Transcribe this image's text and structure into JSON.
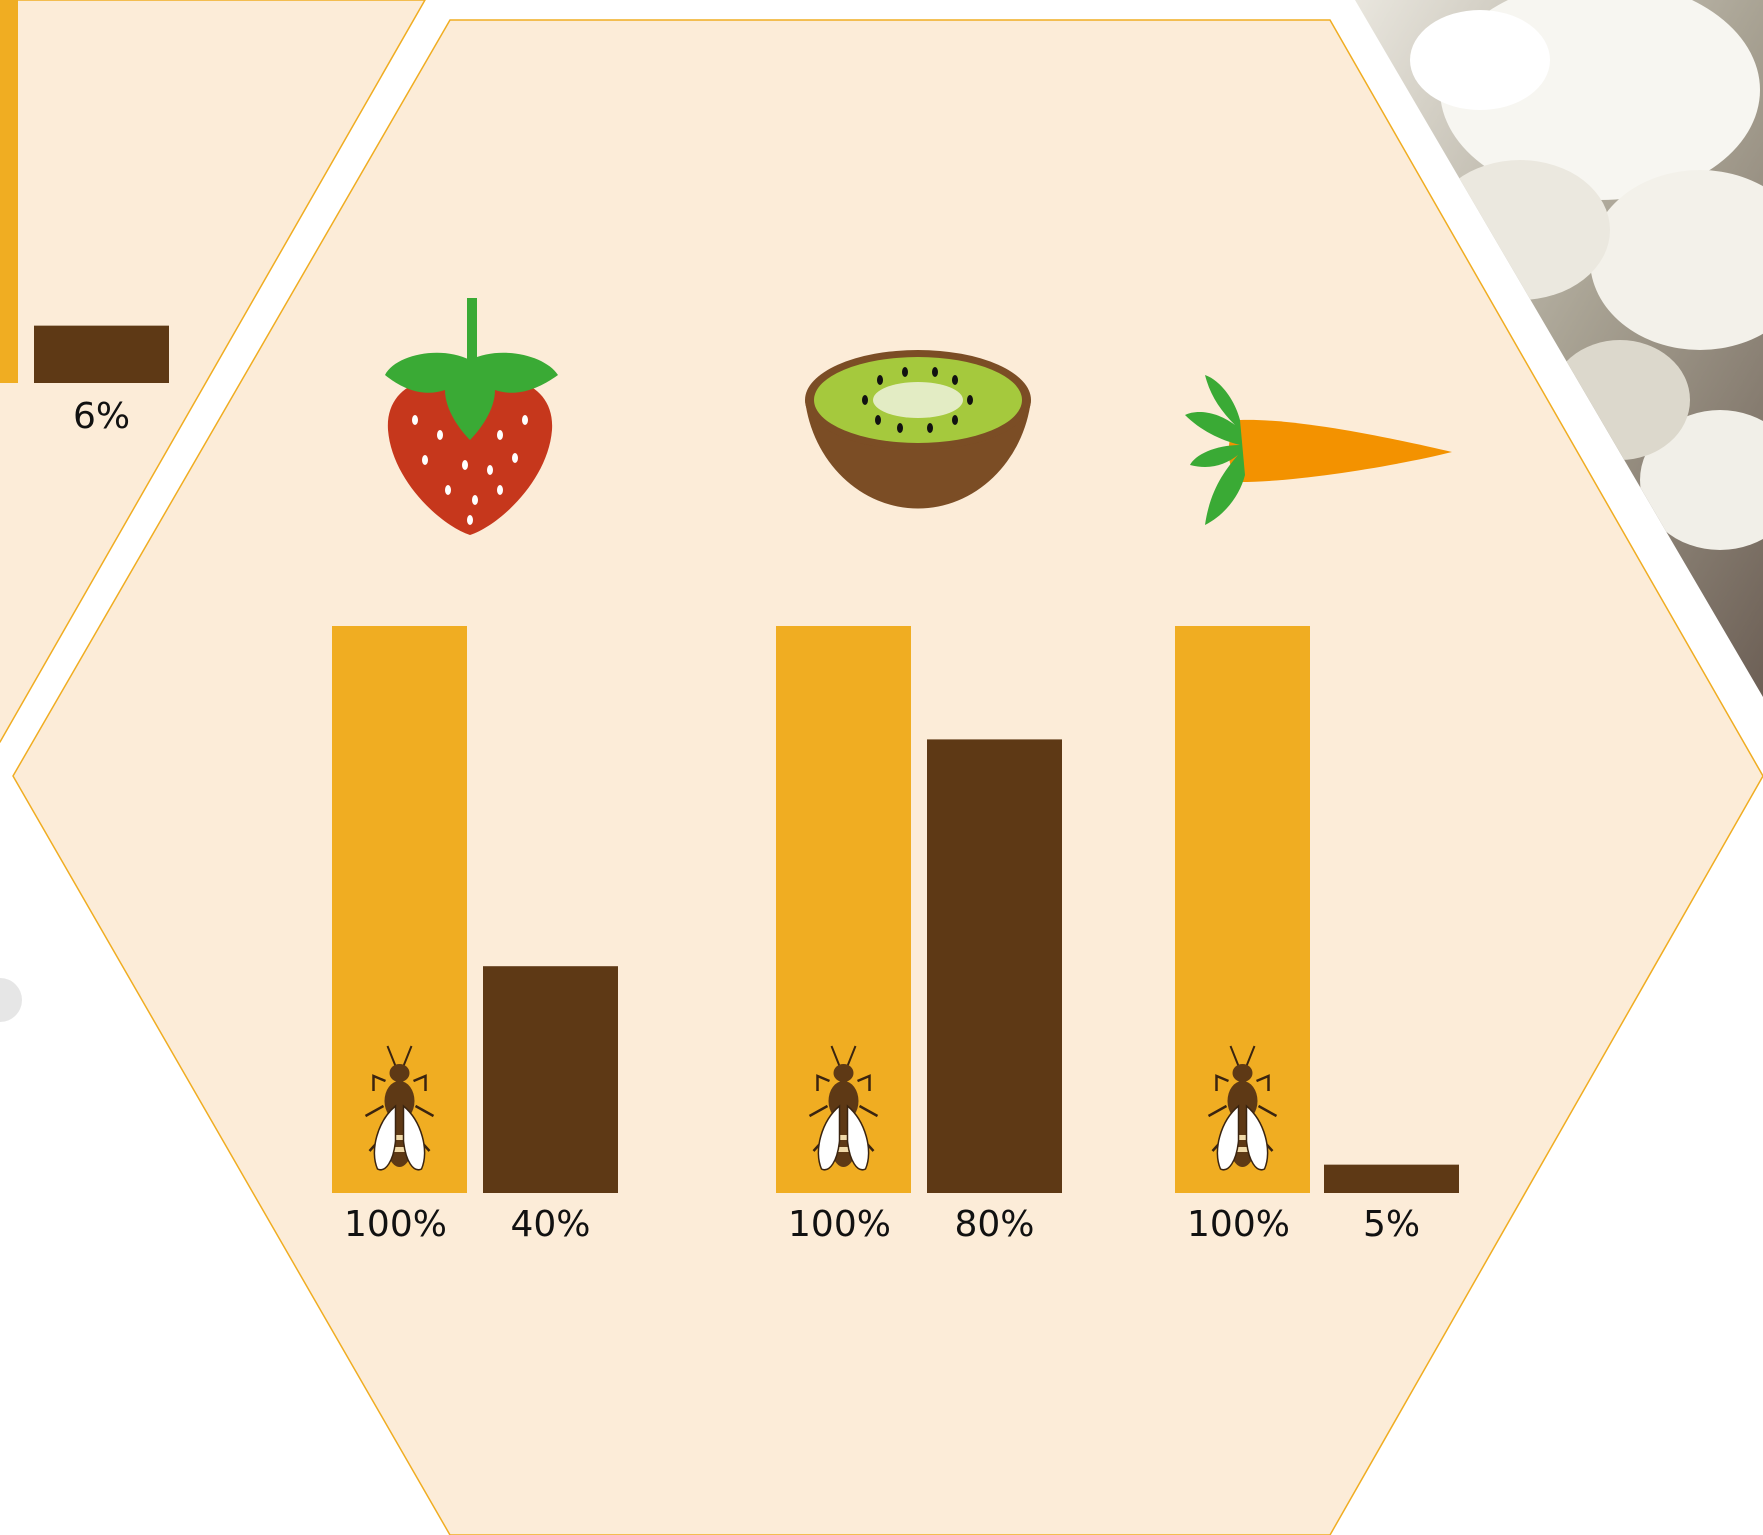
{
  "chart_data": [
    {
      "type": "bar",
      "categories": [
        null
      ],
      "ylim": [
        0,
        100
      ],
      "series": [
        {
          "color": "#f0ad22",
          "values": [
            100
          ],
          "value_labels": [
            null
          ]
        },
        {
          "color": "#5e3915",
          "values": [
            6
          ],
          "value_labels": [
            "6%"
          ]
        }
      ]
    },
    {
      "type": "bar",
      "categories": [
        null,
        null,
        null
      ],
      "ylim": [
        0,
        100
      ],
      "series": [
        {
          "color": "#f0ad22",
          "values": [
            100,
            100,
            100
          ],
          "value_labels": [
            "100%",
            "100%",
            "100%"
          ]
        },
        {
          "color": "#5e3915",
          "values": [
            40,
            80,
            5
          ],
          "value_labels": [
            "40%",
            "80%",
            "5%"
          ]
        }
      ]
    }
  ]
}
